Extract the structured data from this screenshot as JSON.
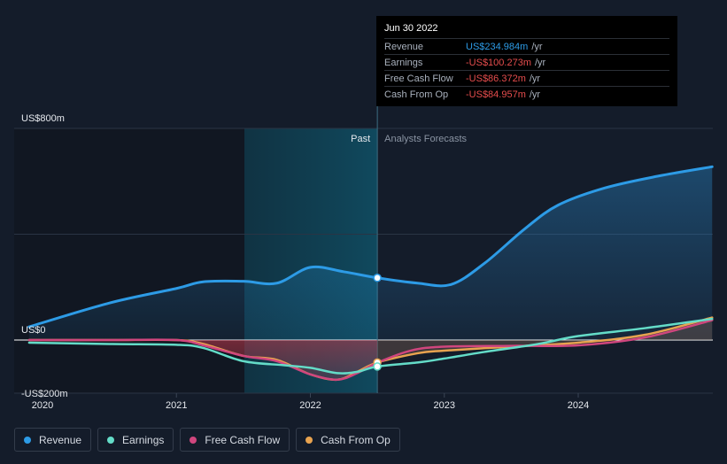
{
  "chart_data": {
    "type": "line",
    "title": "",
    "xlabel": "",
    "ylabel": "",
    "x_ticks": [
      "2020",
      "2021",
      "2022",
      "2023",
      "2024"
    ],
    "y_labels": [
      "US$800m",
      "US$0",
      "-US$200m"
    ],
    "ylim": [
      -200,
      800
    ],
    "past_label": "Past",
    "forecast_label": "Analysts Forecasts",
    "series": [
      {
        "name": "Revenue",
        "color": "#2d9be6",
        "points": [
          [
            2019.9,
            50
          ],
          [
            2020.5,
            140
          ],
          [
            2021.0,
            195
          ],
          [
            2021.2,
            220
          ],
          [
            2021.5,
            222
          ],
          [
            2021.75,
            215
          ],
          [
            2022.0,
            275
          ],
          [
            2022.25,
            258
          ],
          [
            2022.5,
            235
          ],
          [
            2022.8,
            215
          ],
          [
            2023.05,
            210
          ],
          [
            2023.3,
            290
          ],
          [
            2023.6,
            420
          ],
          [
            2023.85,
            510
          ],
          [
            2024.2,
            575
          ],
          [
            2024.6,
            620
          ],
          [
            2025.0,
            655
          ]
        ]
      },
      {
        "name": "Earnings",
        "color": "#64dcc8",
        "points": [
          [
            2019.9,
            -10
          ],
          [
            2020.5,
            -15
          ],
          [
            2021.0,
            -18
          ],
          [
            2021.2,
            -30
          ],
          [
            2021.5,
            -80
          ],
          [
            2021.8,
            -95
          ],
          [
            2022.0,
            -105
          ],
          [
            2022.2,
            -125
          ],
          [
            2022.35,
            -120
          ],
          [
            2022.5,
            -100
          ],
          [
            2022.8,
            -85
          ],
          [
            2023.0,
            -70
          ],
          [
            2023.3,
            -45
          ],
          [
            2023.7,
            -15
          ],
          [
            2024.0,
            15
          ],
          [
            2024.5,
            45
          ],
          [
            2025.0,
            80
          ]
        ]
      },
      {
        "name": "Free Cash Flow",
        "color": "#d0467e",
        "points": [
          [
            2019.9,
            0
          ],
          [
            2020.5,
            0
          ],
          [
            2021.0,
            0
          ],
          [
            2021.2,
            -20
          ],
          [
            2021.5,
            -60
          ],
          [
            2021.75,
            -80
          ],
          [
            2022.0,
            -130
          ],
          [
            2022.2,
            -150
          ],
          [
            2022.35,
            -125
          ],
          [
            2022.5,
            -86
          ],
          [
            2022.75,
            -40
          ],
          [
            2023.0,
            -25
          ],
          [
            2023.5,
            -22
          ],
          [
            2024.0,
            -20
          ],
          [
            2024.5,
            10
          ],
          [
            2025.0,
            75
          ]
        ]
      },
      {
        "name": "Cash From Op",
        "color": "#e8a34f",
        "points": [
          [
            2019.9,
            0
          ],
          [
            2020.5,
            0
          ],
          [
            2021.0,
            0
          ],
          [
            2021.2,
            -15
          ],
          [
            2021.5,
            -60
          ],
          [
            2021.75,
            -75
          ],
          [
            2022.0,
            -130
          ],
          [
            2022.2,
            -150
          ],
          [
            2022.35,
            -120
          ],
          [
            2022.5,
            -85
          ],
          [
            2022.8,
            -50
          ],
          [
            2023.0,
            -40
          ],
          [
            2023.5,
            -25
          ],
          [
            2024.0,
            -10
          ],
          [
            2024.5,
            20
          ],
          [
            2025.0,
            85
          ]
        ]
      }
    ],
    "highlight": {
      "x": 2022.5,
      "revenue": 235,
      "earnings": -100,
      "cash": -85
    }
  },
  "tooltip": {
    "date": "Jun 30 2022",
    "rows": [
      {
        "label": "Revenue",
        "value": "US$234.984m",
        "unit": "/yr",
        "color": "#2d9be6"
      },
      {
        "label": "Earnings",
        "value": "-US$100.273m",
        "unit": "/yr",
        "color": "#e64d4d"
      },
      {
        "label": "Free Cash Flow",
        "value": "-US$86.372m",
        "unit": "/yr",
        "color": "#e64d4d"
      },
      {
        "label": "Cash From Op",
        "value": "-US$84.957m",
        "unit": "/yr",
        "color": "#e64d4d"
      }
    ]
  },
  "legend": [
    {
      "label": "Revenue",
      "color": "#2d9be6"
    },
    {
      "label": "Earnings",
      "color": "#64dcc8"
    },
    {
      "label": "Free Cash Flow",
      "color": "#d0467e"
    },
    {
      "label": "Cash From Op",
      "color": "#e8a34f"
    }
  ]
}
